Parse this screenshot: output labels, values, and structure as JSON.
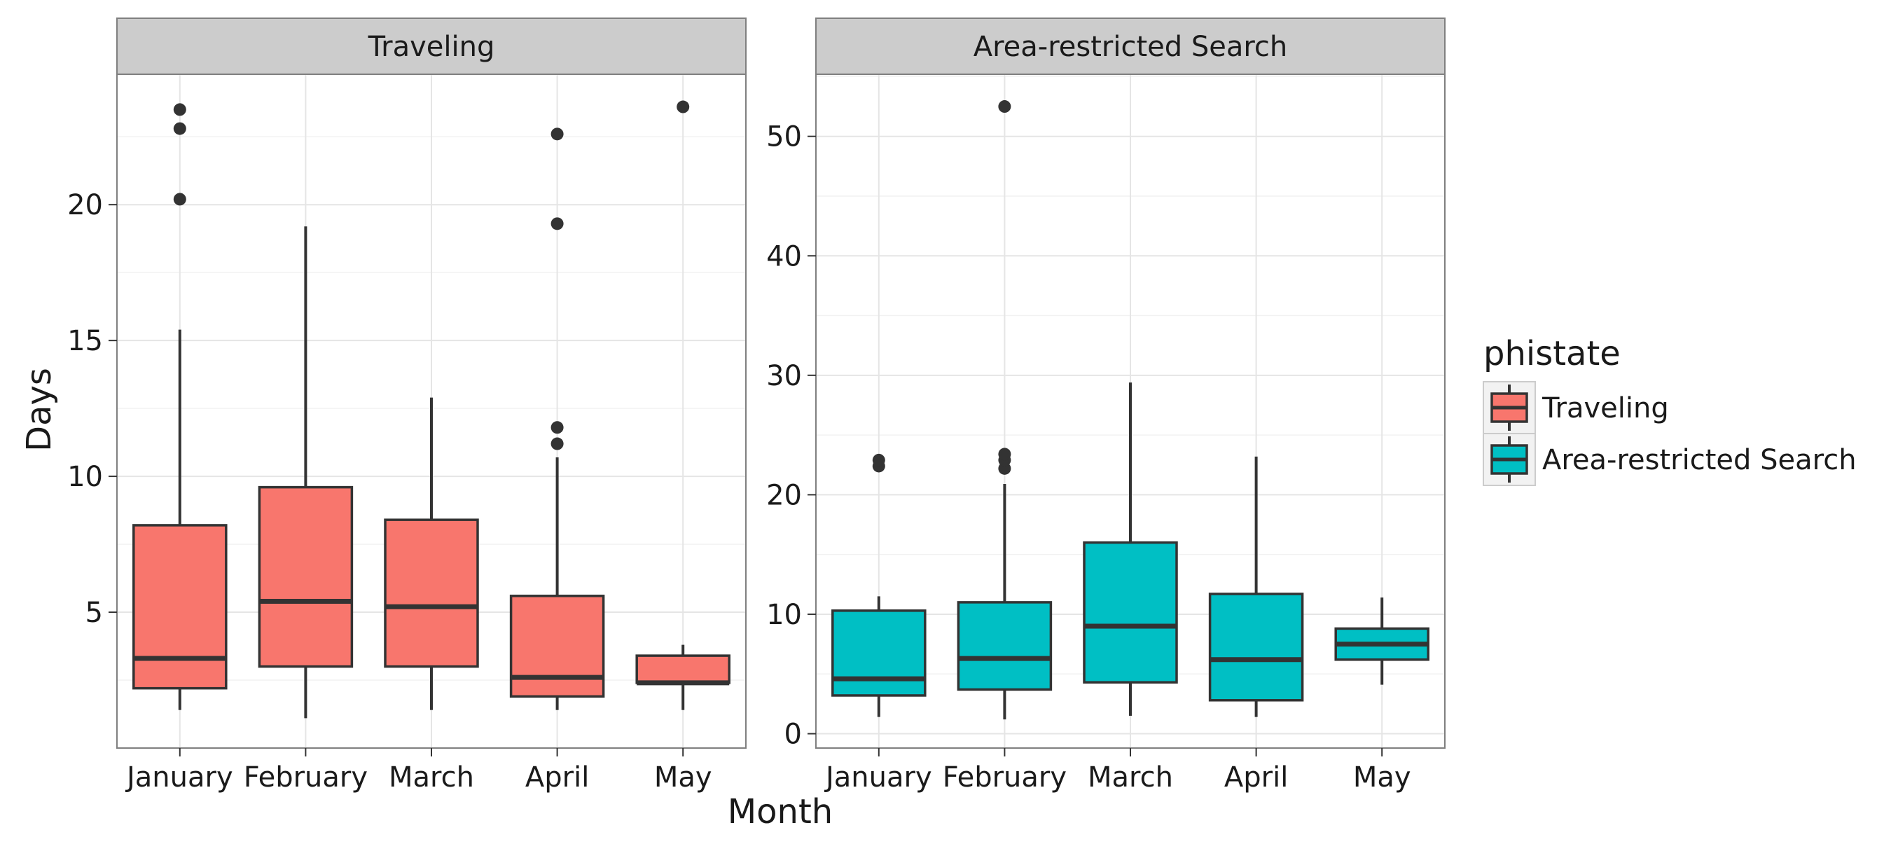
{
  "chart_data": {
    "type": "boxplot",
    "xlabel": "Month",
    "ylabel": "Days",
    "categories": [
      "January",
      "February",
      "March",
      "April",
      "May"
    ],
    "legend": {
      "title": "phistate",
      "placement": "right",
      "items": [
        {
          "label": "Traveling",
          "color": "#F8766D"
        },
        {
          "label": "Area-restricted Search",
          "color": "#00BFC4"
        }
      ]
    },
    "grid": true,
    "panels": [
      {
        "title": "Traveling",
        "fill": "#F8766D",
        "ylim": [
          0,
          24.8
        ],
        "yticks": [
          5,
          10,
          15,
          20
        ],
        "boxes": [
          {
            "category": "January",
            "min": 1.4,
            "q1": 2.2,
            "median": 3.3,
            "q3": 8.2,
            "max": 15.4,
            "outliers": [
              20.2,
              22.8,
              23.5
            ]
          },
          {
            "category": "February",
            "min": 1.1,
            "q1": 3.0,
            "median": 5.4,
            "q3": 9.6,
            "max": 19.2,
            "outliers": []
          },
          {
            "category": "March",
            "min": 1.4,
            "q1": 3.0,
            "median": 5.2,
            "q3": 8.4,
            "max": 12.9,
            "outliers": []
          },
          {
            "category": "April",
            "min": 1.4,
            "q1": 1.9,
            "median": 2.6,
            "q3": 5.6,
            "max": 10.7,
            "outliers": [
              11.2,
              11.8,
              19.3,
              22.6
            ]
          },
          {
            "category": "May",
            "min": 1.4,
            "q1": 2.4,
            "median": 2.4,
            "q3": 3.4,
            "max": 3.8,
            "outliers": [
              23.6
            ]
          }
        ]
      },
      {
        "title": "Area-restricted Search",
        "fill": "#00BFC4",
        "ylim": [
          -1.2,
          55.2
        ],
        "yticks": [
          0,
          10,
          20,
          30,
          40,
          50
        ],
        "boxes": [
          {
            "category": "January",
            "min": 1.4,
            "q1": 3.2,
            "median": 4.6,
            "q3": 10.3,
            "max": 11.5,
            "outliers": [
              22.4,
              22.9
            ]
          },
          {
            "category": "February",
            "min": 1.2,
            "q1": 3.7,
            "median": 6.3,
            "q3": 11.0,
            "max": 20.9,
            "outliers": [
              22.2,
              22.9,
              23.4,
              52.5
            ]
          },
          {
            "category": "March",
            "min": 1.5,
            "q1": 4.3,
            "median": 9.0,
            "q3": 16.0,
            "max": 29.4,
            "outliers": []
          },
          {
            "category": "April",
            "min": 1.4,
            "q1": 2.8,
            "median": 6.2,
            "q3": 11.7,
            "max": 23.2,
            "outliers": []
          },
          {
            "category": "May",
            "min": 4.1,
            "q1": 6.2,
            "median": 7.5,
            "q3": 8.8,
            "max": 11.4,
            "outliers": []
          }
        ]
      }
    ]
  }
}
